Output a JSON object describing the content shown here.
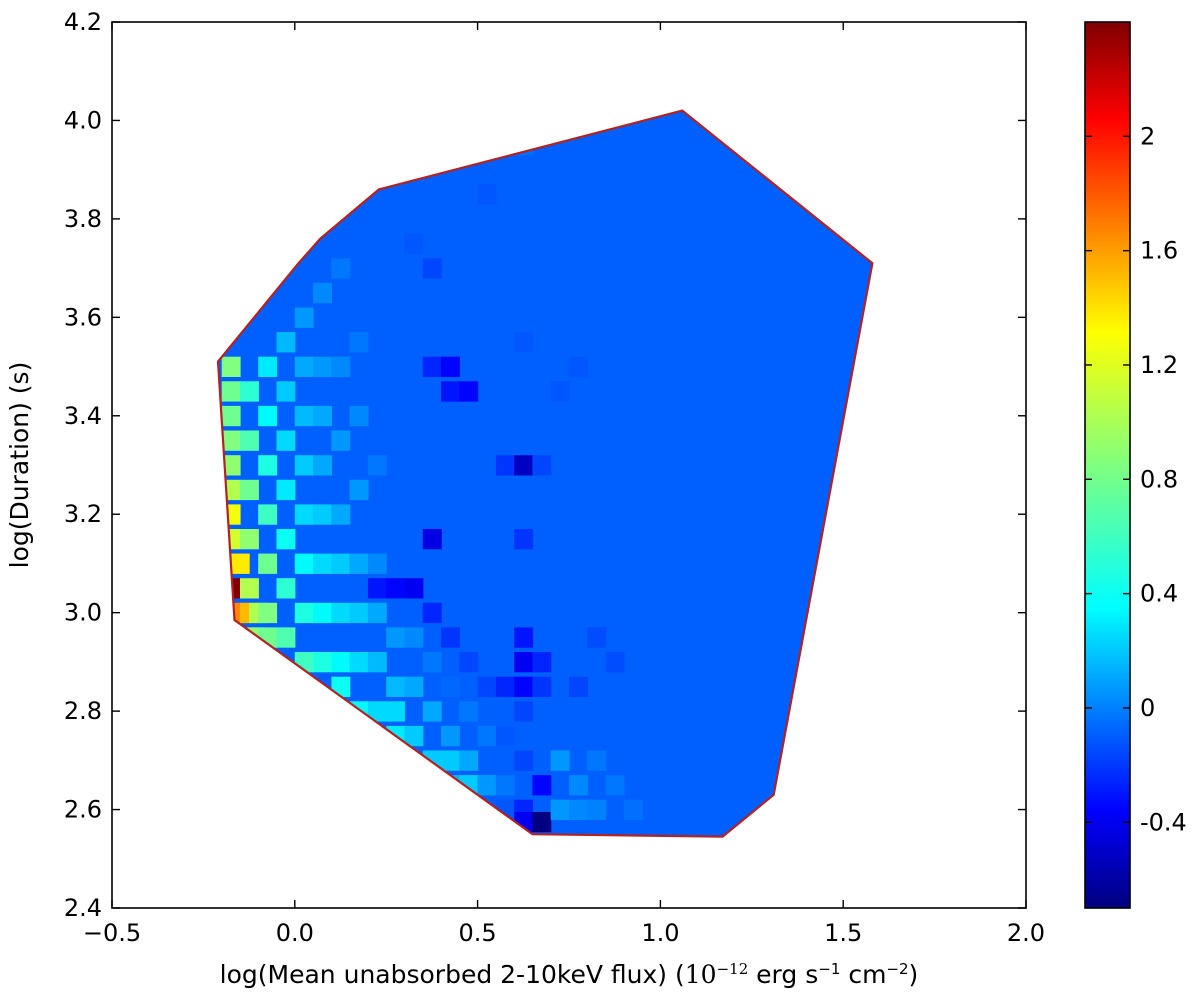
{
  "chart_data": {
    "type": "heatmap",
    "title": "",
    "xlabel": "log(Mean unabsorbed 2-10keV flux)",
    "xlabel_units_prefix": "(",
    "xlabel_units_math": "10",
    "xlabel_units_math_exp": "−12",
    "xlabel_units_erg": " erg s",
    "xlabel_units_s_exp": "−1",
    "xlabel_units_cm": " cm",
    "xlabel_units_cm_exp": "−2",
    "xlabel_units_suffix": ")",
    "ylabel": "log(Duration) (s)",
    "xlim": [
      -0.5,
      2.0
    ],
    "ylim": [
      2.4,
      4.2
    ],
    "x_ticks": [
      "−0.5",
      "0.0",
      "0.5",
      "1.0",
      "1.5",
      "2.0"
    ],
    "y_ticks": [
      "2.4",
      "2.6",
      "2.8",
      "3.0",
      "3.2",
      "3.4",
      "3.6",
      "3.8",
      "4.0",
      "4.2"
    ],
    "colorbar": {
      "min": -0.7,
      "max": 2.4,
      "ticks": [
        "-0.4",
        "0",
        "0.4",
        "0.8",
        "1.2",
        "1.6",
        "2"
      ],
      "tick_values": [
        -0.4,
        0,
        0.4,
        0.8,
        1.2,
        1.6,
        2.0
      ],
      "colormap": "jet"
    },
    "hull_boundary": {
      "color": "#b22222",
      "points": [
        [
          -0.21,
          3.51
        ],
        [
          -0.165,
          2.985
        ],
        [
          0.65,
          2.55
        ],
        [
          1.17,
          2.545
        ],
        [
          1.31,
          2.63
        ],
        [
          1.58,
          3.71
        ],
        [
          1.06,
          4.02
        ],
        [
          0.23,
          3.86
        ],
        [
          0.07,
          3.76
        ],
        [
          0.01,
          3.71
        ],
        [
          -0.21,
          3.51
        ]
      ]
    },
    "background_value": -0.02,
    "grid_x0": -0.5,
    "grid_y0": 2.4,
    "cell_dx": 0.025,
    "cell_dy": 0.02,
    "cells": [
      [
        -0.2,
        3.5,
        0.85
      ],
      [
        -0.2,
        3.45,
        0.8
      ],
      [
        -0.2,
        3.4,
        0.8
      ],
      [
        -0.2,
        3.35,
        0.85
      ],
      [
        -0.2,
        3.3,
        0.9
      ],
      [
        -0.2,
        3.25,
        1.0
      ],
      [
        -0.2,
        3.2,
        1.2
      ],
      [
        -0.2,
        3.15,
        1.1
      ],
      [
        -0.175,
        3.1,
        1.3
      ],
      [
        -0.175,
        3.05,
        2.4
      ],
      [
        -0.175,
        3.0,
        1.6
      ],
      [
        -0.15,
        3.0,
        1.45
      ],
      [
        -0.15,
        2.95,
        1.35
      ],
      [
        -0.15,
        3.45,
        0.6
      ],
      [
        -0.15,
        3.35,
        0.7
      ],
      [
        -0.15,
        3.25,
        0.8
      ],
      [
        -0.15,
        3.15,
        0.9
      ],
      [
        -0.15,
        3.05,
        1.0
      ],
      [
        -0.125,
        3.0,
        1.0
      ],
      [
        -0.125,
        2.95,
        0.9
      ],
      [
        -0.1,
        3.5,
        0.4
      ],
      [
        -0.1,
        3.4,
        0.45
      ],
      [
        -0.1,
        3.3,
        0.55
      ],
      [
        -0.1,
        3.2,
        0.65
      ],
      [
        -0.1,
        3.1,
        0.8
      ],
      [
        -0.1,
        3.0,
        0.85
      ],
      [
        -0.1,
        2.95,
        0.8
      ],
      [
        -0.05,
        3.55,
        0.25
      ],
      [
        -0.05,
        3.45,
        0.3
      ],
      [
        -0.05,
        3.35,
        0.35
      ],
      [
        -0.05,
        3.25,
        0.4
      ],
      [
        -0.05,
        3.15,
        0.5
      ],
      [
        -0.05,
        3.05,
        0.6
      ],
      [
        -0.05,
        2.95,
        0.7
      ],
      [
        0.0,
        3.6,
        0.15
      ],
      [
        0.0,
        3.5,
        0.2
      ],
      [
        0.0,
        3.4,
        0.25
      ],
      [
        0.0,
        3.3,
        0.3
      ],
      [
        0.0,
        3.2,
        0.35
      ],
      [
        0.0,
        3.1,
        0.45
      ],
      [
        0.0,
        3.0,
        0.55
      ],
      [
        0.0,
        2.9,
        0.65
      ],
      [
        0.05,
        3.65,
        0.1
      ],
      [
        0.05,
        3.5,
        0.15
      ],
      [
        0.05,
        3.4,
        0.2
      ],
      [
        0.05,
        3.3,
        0.2
      ],
      [
        0.05,
        3.2,
        0.3
      ],
      [
        0.05,
        3.1,
        0.35
      ],
      [
        0.05,
        3.0,
        0.45
      ],
      [
        0.05,
        2.9,
        0.55
      ],
      [
        0.1,
        3.7,
        0.05
      ],
      [
        0.1,
        3.5,
        0.1
      ],
      [
        0.1,
        3.35,
        0.15
      ],
      [
        0.1,
        3.2,
        0.2
      ],
      [
        0.1,
        3.1,
        0.3
      ],
      [
        0.1,
        3.0,
        0.35
      ],
      [
        0.1,
        2.9,
        0.45
      ],
      [
        0.1,
        2.85,
        0.5
      ],
      [
        0.15,
        3.55,
        0.05
      ],
      [
        0.15,
        3.4,
        0.1
      ],
      [
        0.15,
        3.25,
        0.15
      ],
      [
        0.15,
        3.1,
        0.2
      ],
      [
        0.15,
        3.0,
        0.3
      ],
      [
        0.15,
        2.9,
        0.35
      ],
      [
        0.15,
        2.8,
        0.45
      ],
      [
        0.2,
        3.3,
        0.05
      ],
      [
        0.2,
        3.1,
        0.1
      ],
      [
        0.2,
        3.05,
        -0.25
      ],
      [
        0.2,
        3.0,
        0.2
      ],
      [
        0.2,
        2.9,
        0.25
      ],
      [
        0.2,
        2.8,
        0.35
      ],
      [
        0.25,
        2.8,
        0.35
      ],
      [
        0.25,
        2.75,
        0.4
      ],
      [
        0.25,
        3.05,
        -0.3
      ],
      [
        0.25,
        2.95,
        0.15
      ],
      [
        0.25,
        2.85,
        0.25
      ],
      [
        0.3,
        3.05,
        -0.35
      ],
      [
        0.3,
        2.95,
        0.1
      ],
      [
        0.3,
        2.85,
        0.2
      ],
      [
        0.3,
        2.75,
        0.3
      ],
      [
        0.35,
        3.15,
        -0.4
      ],
      [
        0.35,
        3.0,
        -0.2
      ],
      [
        0.35,
        2.9,
        0.05
      ],
      [
        0.35,
        2.8,
        0.2
      ],
      [
        0.35,
        2.7,
        0.3
      ],
      [
        0.35,
        3.5,
        -0.2
      ],
      [
        0.4,
        3.5,
        -0.3
      ],
      [
        0.4,
        3.45,
        -0.25
      ],
      [
        0.4,
        2.95,
        -0.15
      ],
      [
        0.4,
        2.85,
        0.0
      ],
      [
        0.4,
        2.75,
        0.15
      ],
      [
        0.4,
        2.7,
        0.3
      ],
      [
        0.4,
        2.65,
        0.25
      ],
      [
        0.45,
        3.45,
        -0.3
      ],
      [
        0.45,
        2.9,
        -0.1
      ],
      [
        0.45,
        2.8,
        0.05
      ],
      [
        0.45,
        2.7,
        0.2
      ],
      [
        0.45,
        2.65,
        0.3
      ],
      [
        0.5,
        2.85,
        -0.1
      ],
      [
        0.5,
        2.75,
        0.05
      ],
      [
        0.5,
        2.65,
        0.15
      ],
      [
        0.55,
        3.3,
        -0.15
      ],
      [
        0.55,
        2.85,
        -0.2
      ],
      [
        0.55,
        2.75,
        -0.05
      ],
      [
        0.55,
        2.65,
        0.05
      ],
      [
        0.55,
        2.6,
        -0.05
      ],
      [
        0.6,
        3.3,
        -0.5
      ],
      [
        0.6,
        3.15,
        -0.15
      ],
      [
        0.6,
        2.95,
        -0.25
      ],
      [
        0.6,
        2.9,
        -0.35
      ],
      [
        0.6,
        2.85,
        -0.3
      ],
      [
        0.6,
        2.8,
        -0.1
      ],
      [
        0.6,
        2.7,
        -0.1
      ],
      [
        0.6,
        2.6,
        -0.2
      ],
      [
        0.6,
        2.575,
        -0.35
      ],
      [
        0.65,
        3.3,
        -0.1
      ],
      [
        0.65,
        2.9,
        -0.2
      ],
      [
        0.65,
        2.85,
        -0.15
      ],
      [
        0.65,
        2.65,
        -0.3
      ],
      [
        0.65,
        2.575,
        -0.7
      ],
      [
        0.7,
        2.7,
        0.15
      ],
      [
        0.7,
        2.6,
        0.15
      ],
      [
        0.75,
        2.65,
        0.1
      ],
      [
        0.75,
        2.6,
        0.1
      ],
      [
        0.8,
        2.7,
        0.05
      ],
      [
        0.8,
        2.6,
        0.08
      ],
      [
        0.85,
        2.65,
        0.05
      ],
      [
        0.9,
        2.6,
        0.03
      ],
      [
        0.75,
        2.85,
        -0.1
      ],
      [
        0.8,
        2.95,
        -0.08
      ],
      [
        0.85,
        2.9,
        -0.08
      ],
      [
        0.7,
        3.45,
        -0.05
      ],
      [
        0.75,
        3.5,
        -0.05
      ],
      [
        0.6,
        3.55,
        -0.05
      ],
      [
        0.3,
        3.75,
        -0.05
      ],
      [
        0.35,
        3.7,
        -0.1
      ],
      [
        0.6,
        3.95,
        0.03
      ],
      [
        0.5,
        3.85,
        -0.05
      ]
    ]
  }
}
